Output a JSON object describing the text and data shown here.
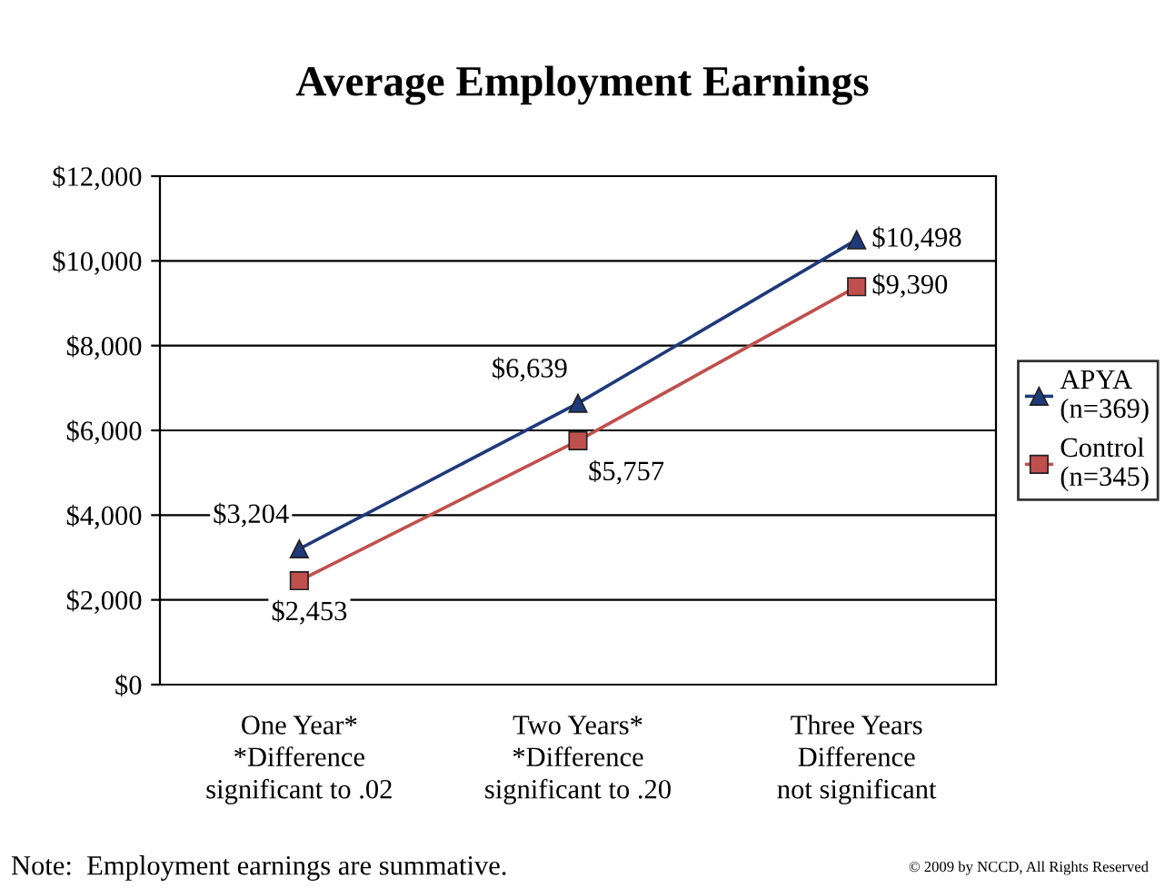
{
  "chart_data": {
    "type": "line",
    "title": "Average Employment Earnings",
    "categories": [
      "One Year*\n*Difference\nsignificant to .02",
      "Two Years*\n*Difference\nsignificant to .20",
      "Three Years\nDifference\nnot significant"
    ],
    "series": [
      {
        "name": "APYA\n(n=369)",
        "color": "#1f3a7a",
        "marker": "triangle",
        "values": [
          3204,
          6639,
          10498
        ],
        "value_labels": [
          "$3,204",
          "$6,639",
          "$10,498"
        ]
      },
      {
        "name": "Control\n(n=345)",
        "color": "#c0504d",
        "marker": "square",
        "values": [
          2453,
          5757,
          9390
        ],
        "value_labels": [
          "$2,453",
          "$5,757",
          "$9,390"
        ]
      }
    ],
    "ylim": [
      0,
      12000
    ],
    "yticks": [
      {
        "value": 0,
        "label": "$0"
      },
      {
        "value": 2000,
        "label": "$2,000"
      },
      {
        "value": 4000,
        "label": "$4,000"
      },
      {
        "value": 6000,
        "label": "$6,000"
      },
      {
        "value": 8000,
        "label": "$8,000"
      },
      {
        "value": 10000,
        "label": "$10,000"
      },
      {
        "value": 12000,
        "label": "$12,000"
      }
    ],
    "grid": "y",
    "legend": "right",
    "line_style": "solid",
    "annotations": [
      "Note:  Employment earnings are summative.",
      "© 2009 by NCCD, All Rights Reserved"
    ]
  }
}
